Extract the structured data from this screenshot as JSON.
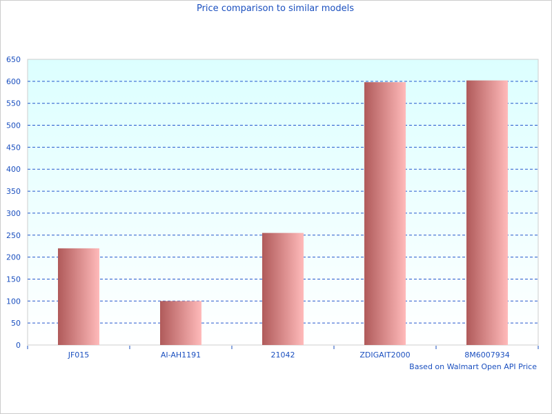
{
  "chart_data": {
    "type": "bar",
    "title": "Price comparison to similar models",
    "footnote": "Based on Walmart Open API Price",
    "categories": [
      "JF015",
      "AI-AH1191",
      "21042",
      "ZDIGAIT2000",
      "8M6007934"
    ],
    "values": [
      220,
      100,
      255,
      598,
      602
    ],
    "ylim": [
      0,
      650
    ],
    "yticks": [
      0,
      50,
      100,
      150,
      200,
      250,
      300,
      350,
      400,
      450,
      500,
      550,
      600,
      650
    ],
    "grid": true,
    "colors": {
      "bar_dark": "#b05a5a",
      "bar_light": "#ffbaba",
      "text": "#1a4fbf",
      "grid": "#2255cc",
      "plot_top": "#dcffff",
      "plot_bottom": "#ffffff"
    }
  }
}
